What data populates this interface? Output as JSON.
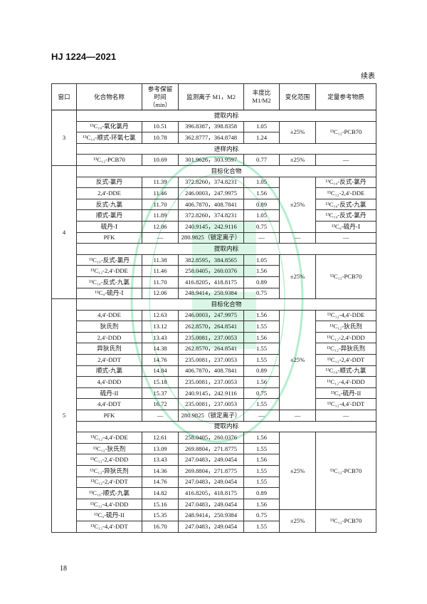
{
  "header": {
    "standard_no": "HJ 1224—2021",
    "continued": "续表"
  },
  "table": {
    "columns": [
      "窗口",
      "化合物名称",
      "参考保留\n时间\n（min）",
      "监测离子 M1，M2",
      "丰度比\nM1/M2",
      "变化范围",
      "定量参考物质"
    ],
    "windows": [
      {
        "window": "3",
        "groups": [
          {
            "label": "提取内标",
            "rows": [
              {
                "name": "¹³C₁₀-氧化氯丹",
                "rt": "10.51",
                "ions": "396.8387，398.8358",
                "ratio": "1.05",
                "range": "±25%",
                "ref": "¹³C₁₂-PCB70"
              },
              {
                "name": "¹³C₁₀-顺式-环氧七氯",
                "rt": "10.78",
                "ions": "362.8777，364.8748",
                "ratio": "1.24",
                "range": null,
                "ref": null
              }
            ]
          },
          {
            "label": "进样内标",
            "rows": [
              {
                "name": "¹³C₁₂-PCB70",
                "rt": "10.69",
                "ions": "301.9626，303.9597",
                "ratio": "0.77",
                "range": "±25%",
                "ref": "—"
              }
            ]
          }
        ]
      },
      {
        "window": "4",
        "groups": [
          {
            "label": "目标化合物",
            "rows": [
              {
                "name": "反式-氯丹",
                "rt": "11.39",
                "ions": "372.8260，374.8231",
                "ratio": "1.05",
                "range": "±25%",
                "ref": "¹³C₁₀-反式-氯丹"
              },
              {
                "name": "2,4'-DDE",
                "rt": "11.46",
                "ions": "246.0003，247.9975",
                "ratio": "1.56",
                "range": null,
                "ref": "¹³C₁₂-2,4'-DDE"
              },
              {
                "name": "反式-九氯",
                "rt": "11.70",
                "ions": "406.7870，408.7841",
                "ratio": "0.89",
                "range": null,
                "ref": "¹³C₁₀-反式-九氯"
              },
              {
                "name": "顺式-氯丹",
                "rt": "11.89",
                "ions": "372.8260，374.8231",
                "ratio": "1.05",
                "range": null,
                "ref": "¹³C₁₀-反式-氯丹"
              },
              {
                "name": "硫丹-Ⅰ",
                "rt": "12.06",
                "ions": "240.9145，242.9116",
                "ratio": "0.75",
                "range": null,
                "ref": "¹³C₉-硫丹-Ⅰ"
              },
              {
                "name": "PFK",
                "rt": "—",
                "ions": "280.9825（锁定离子）",
                "ratio": "—",
                "range": "—",
                "ref": "—"
              }
            ]
          },
          {
            "label": "提取内标",
            "rows": [
              {
                "name": "¹³C₁₀-反式-氯丹",
                "rt": "11.38",
                "ions": "382.8595，384.8565",
                "ratio": "1.05",
                "range": "±25%",
                "ref": "¹³C₁₂-PCB70"
              },
              {
                "name": "¹³C₁₂-2,4'-DDE",
                "rt": "11.46",
                "ions": "258.0405，260.0376",
                "ratio": "1.56",
                "range": null,
                "ref": null
              },
              {
                "name": "¹³C₁₀-反式-九氯",
                "rt": "11.70",
                "ions": "416.8205，418.8175",
                "ratio": "0.89",
                "range": null,
                "ref": null
              },
              {
                "name": "¹³C₉-硫丹-Ⅰ",
                "rt": "12.06",
                "ions": "248.9414，250.9384",
                "ratio": "0.75",
                "range": null,
                "ref": null
              }
            ]
          }
        ]
      },
      {
        "window": "5",
        "groups": [
          {
            "label": "目标化合物",
            "rows": [
              {
                "name": "4,4'-DDE",
                "rt": "12.63",
                "ions": "246.0003，247.9975",
                "ratio": "1.56",
                "range": "±25%",
                "ref": "¹³C₁₂-4,4'-DDE"
              },
              {
                "name": "狄氏剂",
                "rt": "13.12",
                "ions": "262.8570，264.8541",
                "ratio": "1.55",
                "range": null,
                "ref": "¹³C₁₂-狄氏剂"
              },
              {
                "name": "2,4'-DDD",
                "rt": "13.43",
                "ions": "235.0081，237.0053",
                "ratio": "1.56",
                "range": null,
                "ref": "¹³C₁₂-2,4'-DDD"
              },
              {
                "name": "异狄氏剂",
                "rt": "14.38",
                "ions": "262.8570，264.8541",
                "ratio": "1.55",
                "range": null,
                "ref": "¹³C₁₂-异狄氏剂"
              },
              {
                "name": "2,4'-DDT",
                "rt": "14.76",
                "ions": "235.0081，237.0053",
                "ratio": "1.55",
                "range": null,
                "ref": "¹³C₁₂-2,4'-DDT"
              },
              {
                "name": "顺式-九氯",
                "rt": "14.84",
                "ions": "406.7870，408.7841",
                "ratio": "0.89",
                "range": null,
                "ref": "¹³C₁₀-顺式-九氯"
              },
              {
                "name": "4,4'-DDD",
                "rt": "15.18",
                "ions": "235.0081，237.0053",
                "ratio": "1.56",
                "range": null,
                "ref": "¹³C₁₂-4,4'-DDD"
              },
              {
                "name": "硫丹-II",
                "rt": "15.37",
                "ions": "240.9145，242.9116",
                "ratio": "0.75",
                "range": null,
                "ref": "¹³C₉-硫丹-II"
              },
              {
                "name": "4,4'-DDT",
                "rt": "16.72",
                "ions": "235.0081，237.0053",
                "ratio": "1.55",
                "range": null,
                "ref": "¹³C₁₂-4,4'-DDT"
              },
              {
                "name": "PFK",
                "rt": "—",
                "ions": "280.9825（锁定离子）",
                "ratio": "—",
                "range": "—",
                "ref": "—"
              }
            ]
          },
          {
            "label": "提取内标",
            "rows": [
              {
                "name": "¹³C₁₂-4,4'-DDE",
                "rt": "12.61",
                "ions": "258.0405，260.0376",
                "ratio": "1.56",
                "range": "±25%",
                "ref": "¹³C₁₂-PCB70"
              },
              {
                "name": "¹³C₁₂-狄氏剂",
                "rt": "13.09",
                "ions": "269.8804，271.8775",
                "ratio": "1.55",
                "range": null,
                "ref": null
              },
              {
                "name": "¹³C₁₂-2,4'-DDD",
                "rt": "13.43",
                "ions": "247.0483，249.0454",
                "ratio": "1.56",
                "range": null,
                "ref": null
              },
              {
                "name": "¹³C₁₂-异狄氏剂",
                "rt": "14.36",
                "ions": "269.8804，271.8775",
                "ratio": "1.55",
                "range": null,
                "ref": null
              },
              {
                "name": "¹³C₁₂-2,4'-DDT",
                "rt": "14.76",
                "ions": "247.0483，249.0454",
                "ratio": "1.55",
                "range": null,
                "ref": null
              },
              {
                "name": "¹³C₁₀-顺式-九氯",
                "rt": "14.82",
                "ions": "416.8205，418.8175",
                "ratio": "0.89",
                "range": null,
                "ref": null
              },
              {
                "name": "¹³C₁₂-4,4'-DDD",
                "rt": "15.16",
                "ions": "247.0483，249.0454",
                "ratio": "1.56",
                "range": null,
                "ref": null
              },
              {
                "name": "¹³C₉-硫丹-II",
                "rt": "15.35",
                "ions": "248.9414，250.9384",
                "ratio": "0.75",
                "range": "±25%",
                "ref": "¹³C₁₂-PCB70"
              },
              {
                "name": "¹³C₁₂-4,4'-DDT",
                "rt": "16.70",
                "ions": "247.0483，249.0454",
                "ratio": "1.55",
                "range": null,
                "ref": null
              }
            ]
          }
        ]
      }
    ]
  },
  "footer": {
    "page_number": "18"
  },
  "colors": {
    "watermark": "#2ecc71",
    "text": "#111111"
  }
}
